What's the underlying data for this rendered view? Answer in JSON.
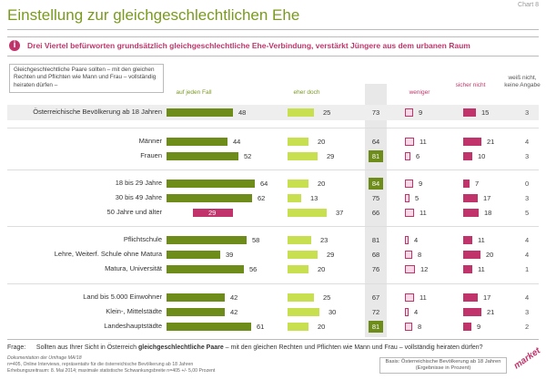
{
  "header": {
    "title": "Einstellung zur gleichgeschlechtlichen Ehe",
    "chart_no": "Chart 8",
    "highlight": "Drei Viertel befürworten grundsätzlich gleichgeschlechtliche Ehe-Verbindung, verstärkt Jüngere aus dem urbanen Raum",
    "info_glyph": "i"
  },
  "question_box": "Gleichgeschlechtliche Paare sollten – mit den gleichen Rechten und Pflichten wie Mann und Frau – vollständig heiraten dürfen –",
  "colors": {
    "dark_green": "#6e8c1a",
    "light_green": "#c8e050",
    "light_pink": "#fbd8e6",
    "dark_pink": "#c0346b"
  },
  "chart_data": {
    "type": "bar",
    "columns": [
      "auf jeden Fall",
      "eher doch",
      "∑",
      "weniger",
      "sicher nicht",
      "weiß nicht, keine Angabe"
    ],
    "rows": [
      {
        "label": "Österreichische Bevölkerung ab 18 Jahren",
        "a": 48,
        "b": 25,
        "sum": 73,
        "c": 9,
        "d": 15,
        "e": 3,
        "highlight_sum": false,
        "negative_a": false
      },
      {
        "label": "Männer",
        "a": 44,
        "b": 20,
        "sum": 64,
        "c": 11,
        "d": 21,
        "e": 4,
        "highlight_sum": false,
        "negative_a": false
      },
      {
        "label": "Frauen",
        "a": 52,
        "b": 29,
        "sum": 81,
        "c": 6,
        "d": 10,
        "e": 3,
        "highlight_sum": true,
        "negative_a": false
      },
      {
        "label": "18 bis 29 Jahre",
        "a": 64,
        "b": 20,
        "sum": 84,
        "c": 9,
        "d": 7,
        "e": 0,
        "highlight_sum": true,
        "negative_a": false
      },
      {
        "label": "30 bis 49 Jahre",
        "a": 62,
        "b": 13,
        "sum": 75,
        "c": 5,
        "d": 17,
        "e": 3,
        "highlight_sum": false,
        "negative_a": false
      },
      {
        "label": "50 Jahre und älter",
        "a": 29,
        "b": 37,
        "sum": 66,
        "c": 11,
        "d": 18,
        "e": 5,
        "highlight_sum": false,
        "negative_a": true
      },
      {
        "label": "Pflichtschule",
        "a": 58,
        "b": 23,
        "sum": 81,
        "c": 4,
        "d": 11,
        "e": 4,
        "highlight_sum": false,
        "negative_a": false
      },
      {
        "label": "Lehre, Weiterf. Schule ohne Matura",
        "a": 39,
        "b": 29,
        "sum": 68,
        "c": 8,
        "d": 20,
        "e": 4,
        "highlight_sum": false,
        "negative_a": false
      },
      {
        "label": "Matura, Universität",
        "a": 56,
        "b": 20,
        "sum": 76,
        "c": 12,
        "d": 11,
        "e": 1,
        "highlight_sum": false,
        "negative_a": false
      },
      {
        "label": "Land bis 5.000 Einwohner",
        "a": 42,
        "b": 25,
        "sum": 67,
        "c": 11,
        "d": 17,
        "e": 4,
        "highlight_sum": false,
        "negative_a": false
      },
      {
        "label": "Klein-, Mittelstädte",
        "a": 42,
        "b": 30,
        "sum": 72,
        "c": 4,
        "d": 21,
        "e": 3,
        "highlight_sum": false,
        "negative_a": false
      },
      {
        "label": "Landeshauptstädte",
        "a": 61,
        "b": 20,
        "sum": 81,
        "c": 8,
        "d": 9,
        "e": 2,
        "highlight_sum": true,
        "negative_a": false
      }
    ]
  },
  "footer": {
    "frage_label": "Frage:",
    "frage_text_1": "Sollten aus Ihrer Sicht in Österreich ",
    "frage_bold": "gleichgeschlechtliche Paare",
    "frage_text_2": " – mit den gleichen Rechten und Pflichten wie Mann und Frau – vollständig heiraten dürfen?",
    "doc_line1": "Dokumentation der Umfrage MA/18",
    "doc_line2": "n=405, Online Interviews, repräsentativ für die österreichische Bevölkerung ab 18 Jahren",
    "doc_line3": "Erhebungszeitraum: 8. Mai 2014; maximale statistische Schwankungsbreite n=405 +/- 5,00 Prozent",
    "basis_line1": "Basis: Österreichische Bevölkerung ab 18 Jahren",
    "basis_line2": "(Ergebnisse in Prozent)",
    "logo": "market"
  }
}
